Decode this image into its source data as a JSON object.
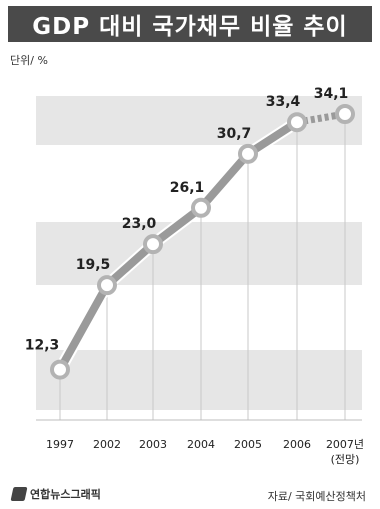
{
  "header": {
    "title": "GDP 대비 국가채무 비율 추이"
  },
  "unit_label": "단위/ %",
  "footer": {
    "logo_text": "연합뉴스그래픽",
    "source": "자료/ 국회예산정책처"
  },
  "colors": {
    "title_bg": "#4a4a4a",
    "band": "#e6e6e6",
    "line": "#9a9a9a",
    "marker": "#b3b3b3"
  },
  "chart_data": {
    "type": "line",
    "title": "GDP 대비 국가채무 비율 추이",
    "xlabel": "",
    "ylabel": "",
    "categories": [
      "1997",
      "2002",
      "2003",
      "2004",
      "2005",
      "2006",
      "2007년"
    ],
    "category_notes": [
      "",
      "",
      "",
      "",
      "",
      "",
      "(전망)"
    ],
    "values": [
      12.3,
      19.5,
      23.0,
      26.1,
      30.7,
      33.4,
      34.1
    ],
    "value_labels": [
      "12,3",
      "19,5",
      "23,0",
      "26,1",
      "30,7",
      "33,4",
      "34,1"
    ],
    "projected_from_index": 5,
    "ylim": [
      8,
      37
    ],
    "grid": false,
    "background_bands": true
  }
}
